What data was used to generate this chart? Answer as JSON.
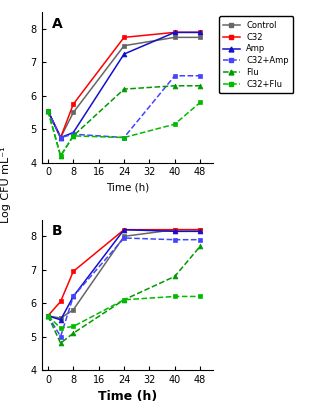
{
  "time": [
    0,
    4,
    8,
    24,
    40,
    48
  ],
  "panel_A": {
    "Control": [
      5.55,
      4.75,
      5.5,
      7.5,
      7.75,
      7.75
    ],
    "C32": [
      5.55,
      4.75,
      5.75,
      7.75,
      7.9,
      7.9
    ],
    "Amp": [
      5.55,
      4.75,
      4.9,
      7.25,
      7.9,
      7.9
    ],
    "C32+Amp": [
      5.55,
      4.75,
      4.85,
      4.75,
      6.6,
      6.6
    ],
    "Flu": [
      5.55,
      4.2,
      4.8,
      6.2,
      6.3,
      6.3
    ],
    "C32+Flu": [
      5.55,
      4.2,
      4.8,
      4.75,
      5.15,
      5.8
    ]
  },
  "panel_B": {
    "Control": [
      5.62,
      5.55,
      5.8,
      8.0,
      8.2,
      8.2
    ],
    "C32": [
      5.62,
      6.05,
      6.95,
      8.2,
      8.2,
      8.2
    ],
    "Amp": [
      5.62,
      5.5,
      6.2,
      8.2,
      8.15,
      8.15
    ],
    "C32+Amp": [
      5.62,
      5.0,
      6.2,
      7.95,
      7.9,
      7.9
    ],
    "Flu": [
      5.62,
      4.8,
      5.1,
      6.1,
      6.8,
      7.7
    ],
    "C32+Flu": [
      5.62,
      5.25,
      5.3,
      6.1,
      6.2,
      6.2
    ]
  },
  "colors": {
    "Control": "#666666",
    "C32": "#ff0000",
    "Amp": "#1111cc",
    "C32+Amp": "#4444ff",
    "Flu": "#009900",
    "C32+Flu": "#00bb00"
  },
  "markers": {
    "Control": "s",
    "C32": "s",
    "Amp": "^",
    "C32+Amp": "s",
    "Flu": "^",
    "C32+Flu": "s"
  },
  "linestyles": {
    "Control": "-",
    "C32": "-",
    "Amp": "-",
    "C32+Amp": "--",
    "Flu": "--",
    "C32+Flu": "--"
  },
  "ylim": [
    4,
    8.5
  ],
  "yticks": [
    4,
    5,
    6,
    7,
    8
  ],
  "xticks": [
    0,
    8,
    16,
    24,
    32,
    40,
    48
  ],
  "xlabel_A": "Time (h)",
  "xlabel_bottom": "Time (h)",
  "ylabel": "Log CFU mL⁻¹",
  "title_A": "A",
  "title_B": "B",
  "legend_labels": [
    "Control",
    "C32",
    "Amp",
    "C32+Amp",
    "Flu",
    "C32+Flu"
  ]
}
